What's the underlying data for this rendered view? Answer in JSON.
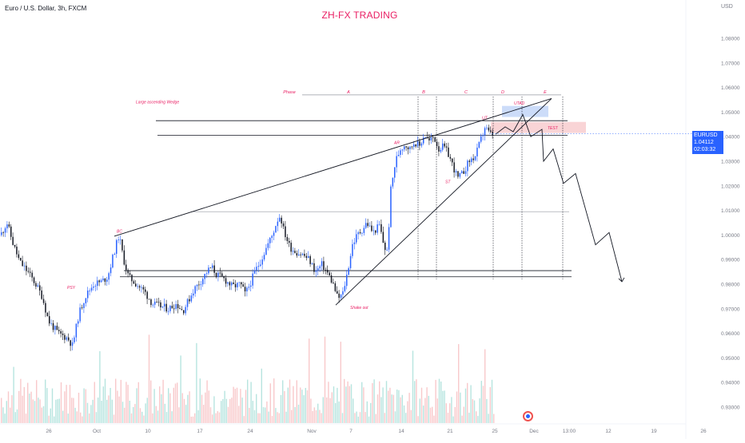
{
  "header": {
    "symbol": "Euro / U.S. Dollar, 3h, FXCM",
    "title": "ZH-FX TRADING",
    "currency": "USD"
  },
  "price_tag": {
    "pair": "EURUSD",
    "price": "1.04112",
    "countdown": "02:03:32",
    "color": "#2962ff"
  },
  "colors": {
    "bull": "#2962ff",
    "bear": "#131722",
    "label": "#e91e63",
    "volume_up": "#b7e4df",
    "volume_down": "#f8c9cb",
    "zone_blue": "#bbd0f7",
    "zone_red": "#f7c6c8"
  },
  "chart_data": {
    "type": "candlestick",
    "x_ticks": [
      "26",
      "Oct",
      "10",
      "17",
      "24",
      "Nov",
      "7",
      "14",
      "21",
      "25",
      "Dec",
      "13:00",
      "12",
      "19",
      "26"
    ],
    "y_ticks": [
      "1.08000",
      "1.07000",
      "1.06000",
      "1.05000",
      "1.04000",
      "1.03000",
      "1.02000",
      "1.01000",
      "1.00000",
      "0.99000",
      "0.98000",
      "0.97000",
      "0.96000",
      "0.95000",
      "0.94000",
      "0.93000"
    ],
    "ylim": [
      0.925,
      1.09
    ],
    "price_path": [
      [
        0,
        1.0
      ],
      [
        8,
        1.005
      ],
      [
        16,
        0.996
      ],
      [
        24,
        0.989
      ],
      [
        34,
        0.985
      ],
      [
        44,
        0.98
      ],
      [
        52,
        0.975
      ],
      [
        60,
        0.965
      ],
      [
        72,
        0.96
      ],
      [
        84,
        0.958
      ],
      [
        90,
        0.955
      ],
      [
        98,
        0.968
      ],
      [
        106,
        0.975
      ],
      [
        116,
        0.98
      ],
      [
        126,
        0.981
      ],
      [
        134,
        0.983
      ],
      [
        142,
        0.993
      ],
      [
        148,
        1.0
      ],
      [
        154,
        0.99
      ],
      [
        160,
        0.983
      ],
      [
        170,
        0.98
      ],
      [
        180,
        0.977
      ],
      [
        190,
        0.972
      ],
      [
        200,
        0.971
      ],
      [
        210,
        0.97
      ],
      [
        220,
        0.972
      ],
      [
        228,
        0.969
      ],
      [
        236,
        0.974
      ],
      [
        242,
        0.978
      ],
      [
        250,
        0.981
      ],
      [
        258,
        0.985
      ],
      [
        264,
        0.987
      ],
      [
        270,
        0.984
      ],
      [
        280,
        0.982
      ],
      [
        290,
        0.979
      ],
      [
        300,
        0.98
      ],
      [
        306,
        0.976
      ],
      [
        312,
        0.98
      ],
      [
        318,
        0.985
      ],
      [
        326,
        0.99
      ],
      [
        334,
        0.996
      ],
      [
        340,
        1.0
      ],
      [
        346,
        1.006
      ],
      [
        350,
        1.008
      ],
      [
        354,
        1.002
      ],
      [
        362,
        0.995
      ],
      [
        370,
        0.993
      ],
      [
        378,
        0.992
      ],
      [
        386,
        0.99
      ],
      [
        394,
        0.985
      ],
      [
        402,
        0.988
      ],
      [
        410,
        0.984
      ],
      [
        416,
        0.98
      ],
      [
        422,
        0.974
      ],
      [
        428,
        0.976
      ],
      [
        434,
        0.985
      ],
      [
        440,
        0.996
      ],
      [
        446,
        1.0
      ],
      [
        452,
        1.002
      ],
      [
        458,
        1.005
      ],
      [
        466,
        1.001
      ],
      [
        474,
        1.004
      ],
      [
        480,
        0.995
      ],
      [
        484,
        0.993
      ],
      [
        488,
        1.018
      ],
      [
        494,
        1.03
      ],
      [
        500,
        1.035
      ],
      [
        506,
        1.037
      ],
      [
        512,
        1.035
      ],
      [
        518,
        1.038
      ],
      [
        524,
        1.036
      ],
      [
        530,
        1.041
      ],
      [
        536,
        1.038
      ],
      [
        542,
        1.04
      ],
      [
        548,
        1.035
      ],
      [
        554,
        1.036
      ],
      [
        560,
        1.033
      ],
      [
        566,
        1.028
      ],
      [
        572,
        1.023
      ],
      [
        578,
        1.025
      ],
      [
        586,
        1.03
      ],
      [
        594,
        1.032
      ],
      [
        600,
        1.038
      ],
      [
        606,
        1.044
      ],
      [
        612,
        1.041
      ],
      [
        618,
        1.041
      ]
    ],
    "projection": [
      [
        620,
        1.041
      ],
      [
        632,
        1.044
      ],
      [
        642,
        1.042
      ],
      [
        654,
        1.049
      ],
      [
        664,
        1.04
      ],
      [
        678,
        1.043
      ],
      [
        680,
        1.03
      ],
      [
        692,
        1.035
      ],
      [
        705,
        1.021
      ],
      [
        720,
        1.025
      ],
      [
        745,
        0.996
      ],
      [
        762,
        1.001
      ],
      [
        778,
        0.981
      ]
    ],
    "wedge_lines": [
      [
        [
          143,
          0.9995
        ],
        [
          690,
          1.0555
        ]
      ],
      [
        [
          420,
          0.9715
        ],
        [
          690,
          1.0555
        ]
      ]
    ],
    "horizontal_levels": [
      {
        "x1": 195,
        "x2": 710,
        "y": 1.0465
      },
      {
        "x1": 197,
        "x2": 710,
        "y": 1.0405
      },
      {
        "x1": 240,
        "x2": 712,
        "y": 1.0095
      },
      {
        "x1": 155,
        "x2": 715,
        "y": 0.9855
      },
      {
        "x1": 150,
        "x2": 715,
        "y": 0.983
      }
    ],
    "phase_line": {
      "x1": 378,
      "x2": 702,
      "y": 1.057
    },
    "phases": [
      {
        "label": "Phase",
        "x": 362
      },
      {
        "label": "A",
        "x": 436
      },
      {
        "label": "B",
        "x": 530
      },
      {
        "label": "C",
        "x": 583
      },
      {
        "label": "D",
        "x": 629
      },
      {
        "label": "E",
        "x": 682
      }
    ],
    "phase_dividers": [
      523,
      546,
      617,
      653,
      704
    ],
    "zones": [
      {
        "label": "UTAD",
        "x1": 628,
        "x2": 686,
        "y1": 1.048,
        "y2": 1.0525,
        "color": "#bbd0f7"
      },
      {
        "label": "TEST",
        "x1": 614,
        "x2": 733,
        "y1": 1.0415,
        "y2": 1.046,
        "color": "#f7c6c8"
      }
    ],
    "annotations": [
      {
        "text": "Large ascending Wedge",
        "x": 170,
        "y": 1.0535
      },
      {
        "text": "BC",
        "x": 146,
        "y": 1.001
      },
      {
        "text": "PSY",
        "x": 84,
        "y": 0.978
      },
      {
        "text": "AR",
        "x": 493,
        "y": 1.037
      },
      {
        "text": "ST",
        "x": 557,
        "y": 1.021
      },
      {
        "text": "UT",
        "x": 603,
        "y": 1.047
      },
      {
        "text": "Shake out",
        "x": 438,
        "y": 0.97
      },
      {
        "text": "UTAD",
        "x": 643,
        "y": 1.053
      },
      {
        "text": "TEST",
        "x": 685,
        "y": 1.043
      }
    ]
  }
}
